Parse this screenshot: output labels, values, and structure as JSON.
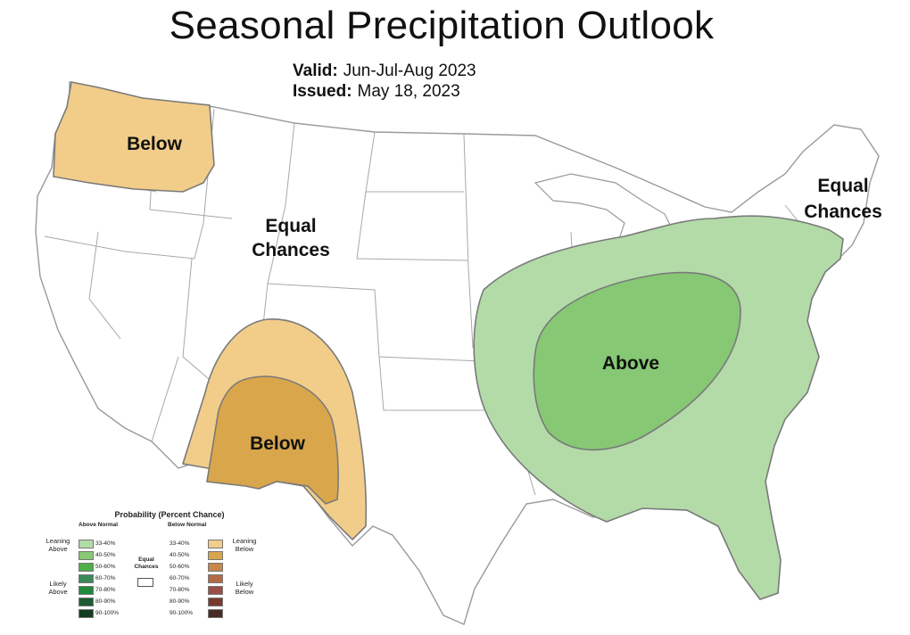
{
  "map": {
    "title": "Seasonal Precipitation Outlook",
    "valid_label": "Valid:",
    "valid_value": "Jun-Jul-Aug 2023",
    "issued_label": "Issued:",
    "issued_value": "May 18, 2023",
    "region_labels": {
      "northwest": "Below",
      "west_equal_line1": "Equal",
      "west_equal_line2": "Chances",
      "southwest": "Below",
      "east": "Above",
      "northeast_line1": "Equal",
      "northeast_line2": "Chances"
    },
    "colors": {
      "leaning_above": "#b3dba8",
      "likely_above_40_50": "#86c874",
      "leaning_below": "#f2cd8a",
      "below_40_50": "#d9a64c",
      "state_border": "#9a9a9a"
    }
  },
  "legend": {
    "title": "Probability (Percent Chance)",
    "above_header": "Above Normal",
    "below_header": "Below Normal",
    "equal_line1": "Equal",
    "equal_line2": "Chances",
    "leaning_above_1": "Leaning",
    "leaning_above_2": "Above",
    "likely_above_1": "Likely",
    "likely_above_2": "Above",
    "leaning_below_1": "Leaning",
    "leaning_below_2": "Below",
    "likely_below_1": "Likely",
    "likely_below_2": "Below",
    "above": [
      {
        "label": "33-40%",
        "color": "#b3dba8"
      },
      {
        "label": "40-50%",
        "color": "#86c874"
      },
      {
        "label": "50-60%",
        "color": "#4fae49"
      },
      {
        "label": "60-70%",
        "color": "#3a8a5a"
      },
      {
        "label": "70-80%",
        "color": "#1f8a3c"
      },
      {
        "label": "80-90%",
        "color": "#1d5a33"
      },
      {
        "label": "90-100%",
        "color": "#123d1e"
      }
    ],
    "below": [
      {
        "label": "33-40%",
        "color": "#f2cd8a"
      },
      {
        "label": "40-50%",
        "color": "#d9a64c"
      },
      {
        "label": "50-60%",
        "color": "#c9864a"
      },
      {
        "label": "60-70%",
        "color": "#b36a44"
      },
      {
        "label": "70-80%",
        "color": "#9b4e45"
      },
      {
        "label": "80-90%",
        "color": "#7a3b2e"
      },
      {
        "label": "90-100%",
        "color": "#4a2a26"
      }
    ]
  }
}
